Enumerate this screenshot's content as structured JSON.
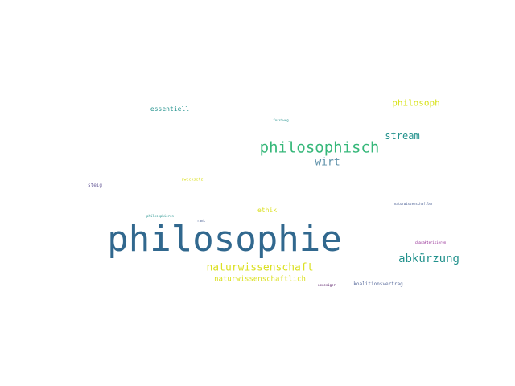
{
  "word_cloud": {
    "words": [
      {
        "text": "philosophie",
        "color": "#31688e"
      },
      {
        "text": "philosophisch",
        "color": "#35b779"
      },
      {
        "text": "naturwissenschaft",
        "color": "#dbe021"
      },
      {
        "text": "abkürzung",
        "color": "#21918c"
      },
      {
        "text": "stream",
        "color": "#21918c"
      },
      {
        "text": "philosoph",
        "color": "#d8e219"
      },
      {
        "text": "wirt",
        "color": "#5c8fa8"
      },
      {
        "text": "naturwissenschaftlich",
        "color": "#dbe021"
      },
      {
        "text": "essentiell",
        "color": "#21918c"
      },
      {
        "text": "ethik",
        "color": "#dbe021"
      },
      {
        "text": "koalitionsvertrag",
        "color": "#5c6e9e"
      },
      {
        "text": "steig",
        "color": "#6a5d9a"
      },
      {
        "text": "forstweg",
        "color": "#21918c"
      },
      {
        "text": "zwecksetz",
        "color": "#dbe021"
      },
      {
        "text": "naturwissenschaftler",
        "color": "#3b528b"
      },
      {
        "text": "philosophieren",
        "color": "#21918c"
      },
      {
        "text": "rank",
        "color": "#3b528b"
      },
      {
        "text": "charakterisieren",
        "color": "#8b1a8b"
      },
      {
        "text": "neuesiger",
        "color": "#440154"
      }
    ]
  }
}
